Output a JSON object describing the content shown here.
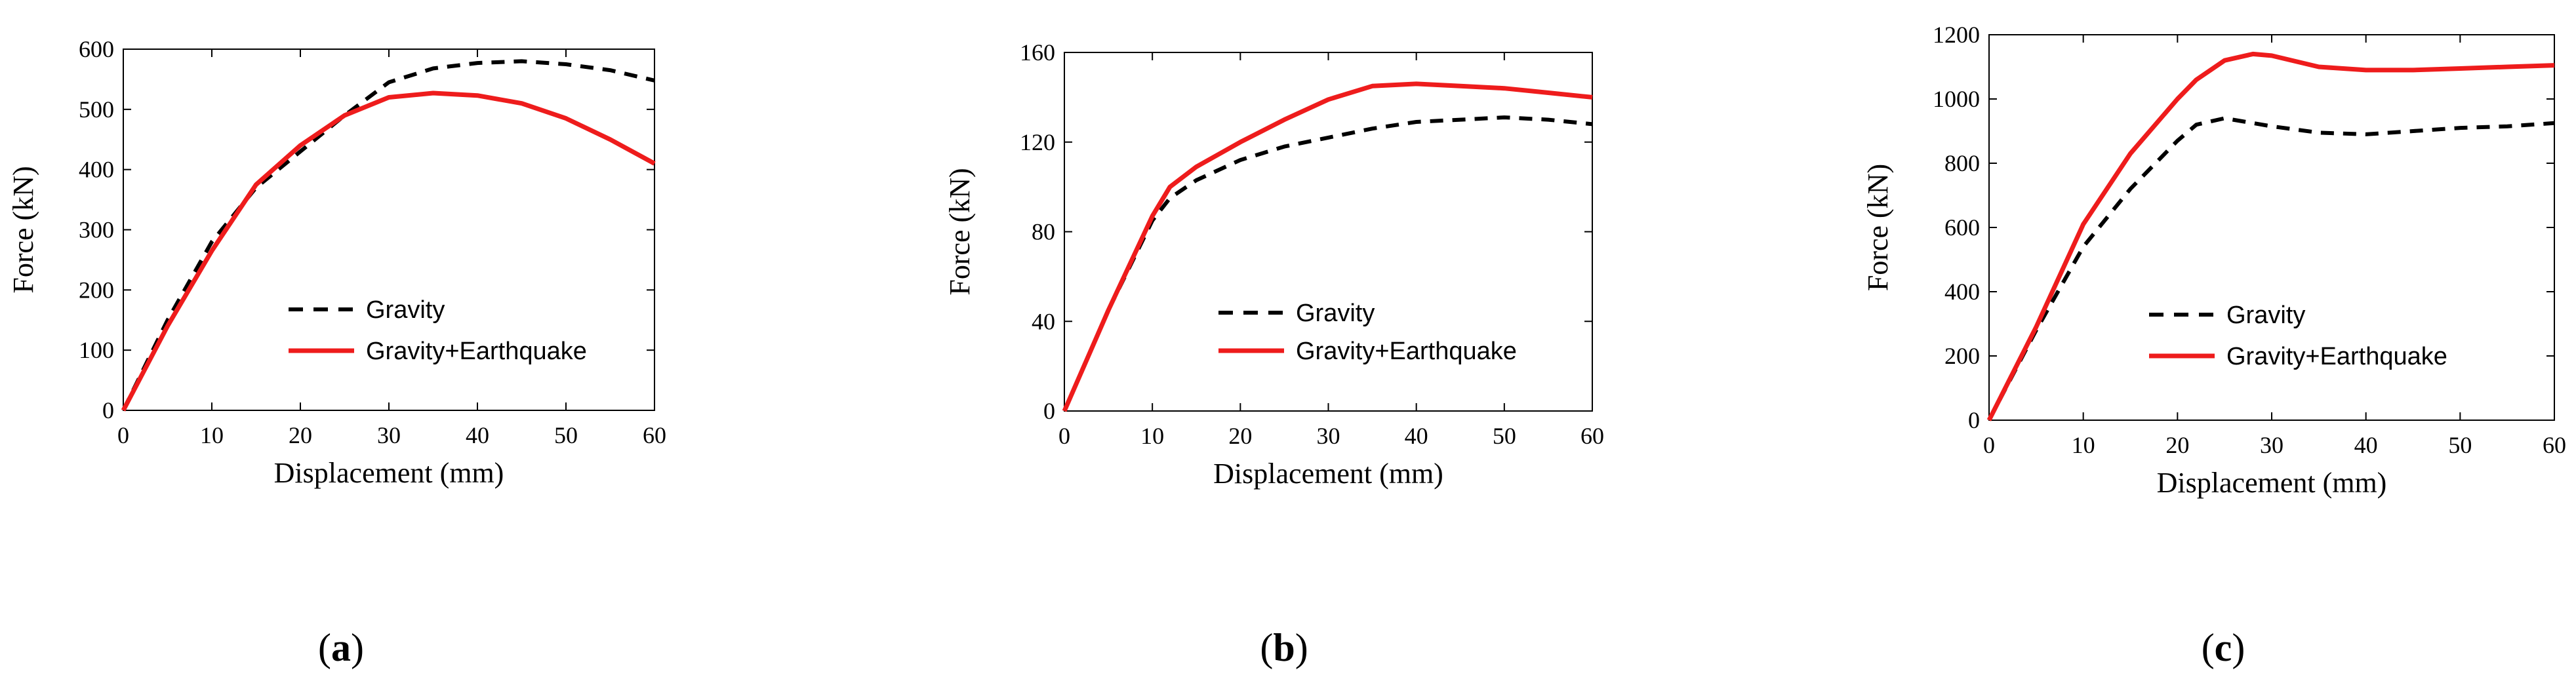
{
  "chart_data": [
    {
      "type": "line",
      "panel": "a",
      "panel_label": "(a)",
      "panel_prefix": "(",
      "panel_letter": "a",
      "panel_suffix": ")",
      "xlabel": "Displacement (mm)",
      "ylabel": "Force (kN)",
      "xlim": [
        0,
        60
      ],
      "ylim": [
        0,
        600
      ],
      "xticks": [
        0,
        10,
        20,
        30,
        40,
        50,
        60
      ],
      "yticks": [
        0,
        100,
        200,
        300,
        400,
        500,
        600
      ],
      "legend_position": "center-right",
      "series": [
        {
          "name": "Gravity",
          "style": "dashed",
          "color": "#000000",
          "x": [
            0,
            5,
            10,
            15,
            20,
            25,
            30,
            35,
            40,
            45,
            50,
            55,
            60
          ],
          "y": [
            0,
            150,
            280,
            370,
            430,
            490,
            545,
            568,
            577,
            580,
            575,
            565,
            548
          ]
        },
        {
          "name": "Gravity+Earthquake",
          "style": "solid",
          "color": "#ee1c1c",
          "x": [
            0,
            5,
            10,
            15,
            20,
            25,
            30,
            35,
            40,
            45,
            50,
            55,
            60
          ],
          "y": [
            0,
            140,
            265,
            375,
            440,
            490,
            520,
            527,
            523,
            510,
            485,
            450,
            410
          ]
        }
      ]
    },
    {
      "type": "line",
      "panel": "b",
      "panel_label": "(b)",
      "panel_prefix": "(",
      "panel_letter": "b",
      "panel_suffix": ")",
      "xlabel": "Displacement (mm)",
      "ylabel": "Force (kN)",
      "xlim": [
        0,
        60
      ],
      "ylim": [
        0,
        160
      ],
      "xticks": [
        0,
        10,
        20,
        30,
        40,
        50,
        60
      ],
      "yticks": [
        0,
        40,
        80,
        120,
        160
      ],
      "legend_position": "center-right",
      "series": [
        {
          "name": "Gravity",
          "style": "dashed",
          "color": "#000000",
          "x": [
            0,
            5,
            10,
            12,
            15,
            20,
            25,
            30,
            35,
            40,
            45,
            50,
            55,
            60
          ],
          "y": [
            0,
            45,
            85,
            95,
            103,
            112,
            118,
            122,
            126,
            129,
            130,
            131,
            130,
            128
          ]
        },
        {
          "name": "Gravity+Earthquake",
          "style": "solid",
          "color": "#ee1c1c",
          "x": [
            0,
            5,
            10,
            12,
            15,
            20,
            25,
            30,
            35,
            40,
            45,
            50,
            55,
            60
          ],
          "y": [
            0,
            45,
            87,
            100,
            109,
            120,
            130,
            139,
            145,
            146,
            145,
            144,
            142,
            140
          ]
        }
      ]
    },
    {
      "type": "line",
      "panel": "c",
      "panel_label": "(c)",
      "panel_prefix": "(",
      "panel_letter": "c",
      "panel_suffix": ")",
      "xlabel": "Displacement (mm)",
      "ylabel": "Force (kN)",
      "xlim": [
        0,
        60
      ],
      "ylim": [
        0,
        1200
      ],
      "xticks": [
        0,
        10,
        20,
        30,
        40,
        50,
        60
      ],
      "yticks": [
        0,
        200,
        400,
        600,
        800,
        1000,
        1200
      ],
      "legend_position": "center-right",
      "series": [
        {
          "name": "Gravity",
          "style": "dashed",
          "color": "#000000",
          "x": [
            0,
            5,
            10,
            15,
            20,
            22,
            25,
            30,
            35,
            40,
            45,
            50,
            55,
            60
          ],
          "y": [
            0,
            280,
            540,
            720,
            870,
            920,
            940,
            915,
            895,
            890,
            900,
            910,
            915,
            925
          ]
        },
        {
          "name": "Gravity+Earthquake",
          "style": "solid",
          "color": "#ee1c1c",
          "x": [
            0,
            5,
            10,
            15,
            20,
            22,
            25,
            28,
            30,
            35,
            40,
            45,
            50,
            55,
            60
          ],
          "y": [
            0,
            290,
            610,
            830,
            1000,
            1060,
            1120,
            1140,
            1135,
            1100,
            1090,
            1090,
            1095,
            1100,
            1105
          ]
        }
      ]
    }
  ]
}
